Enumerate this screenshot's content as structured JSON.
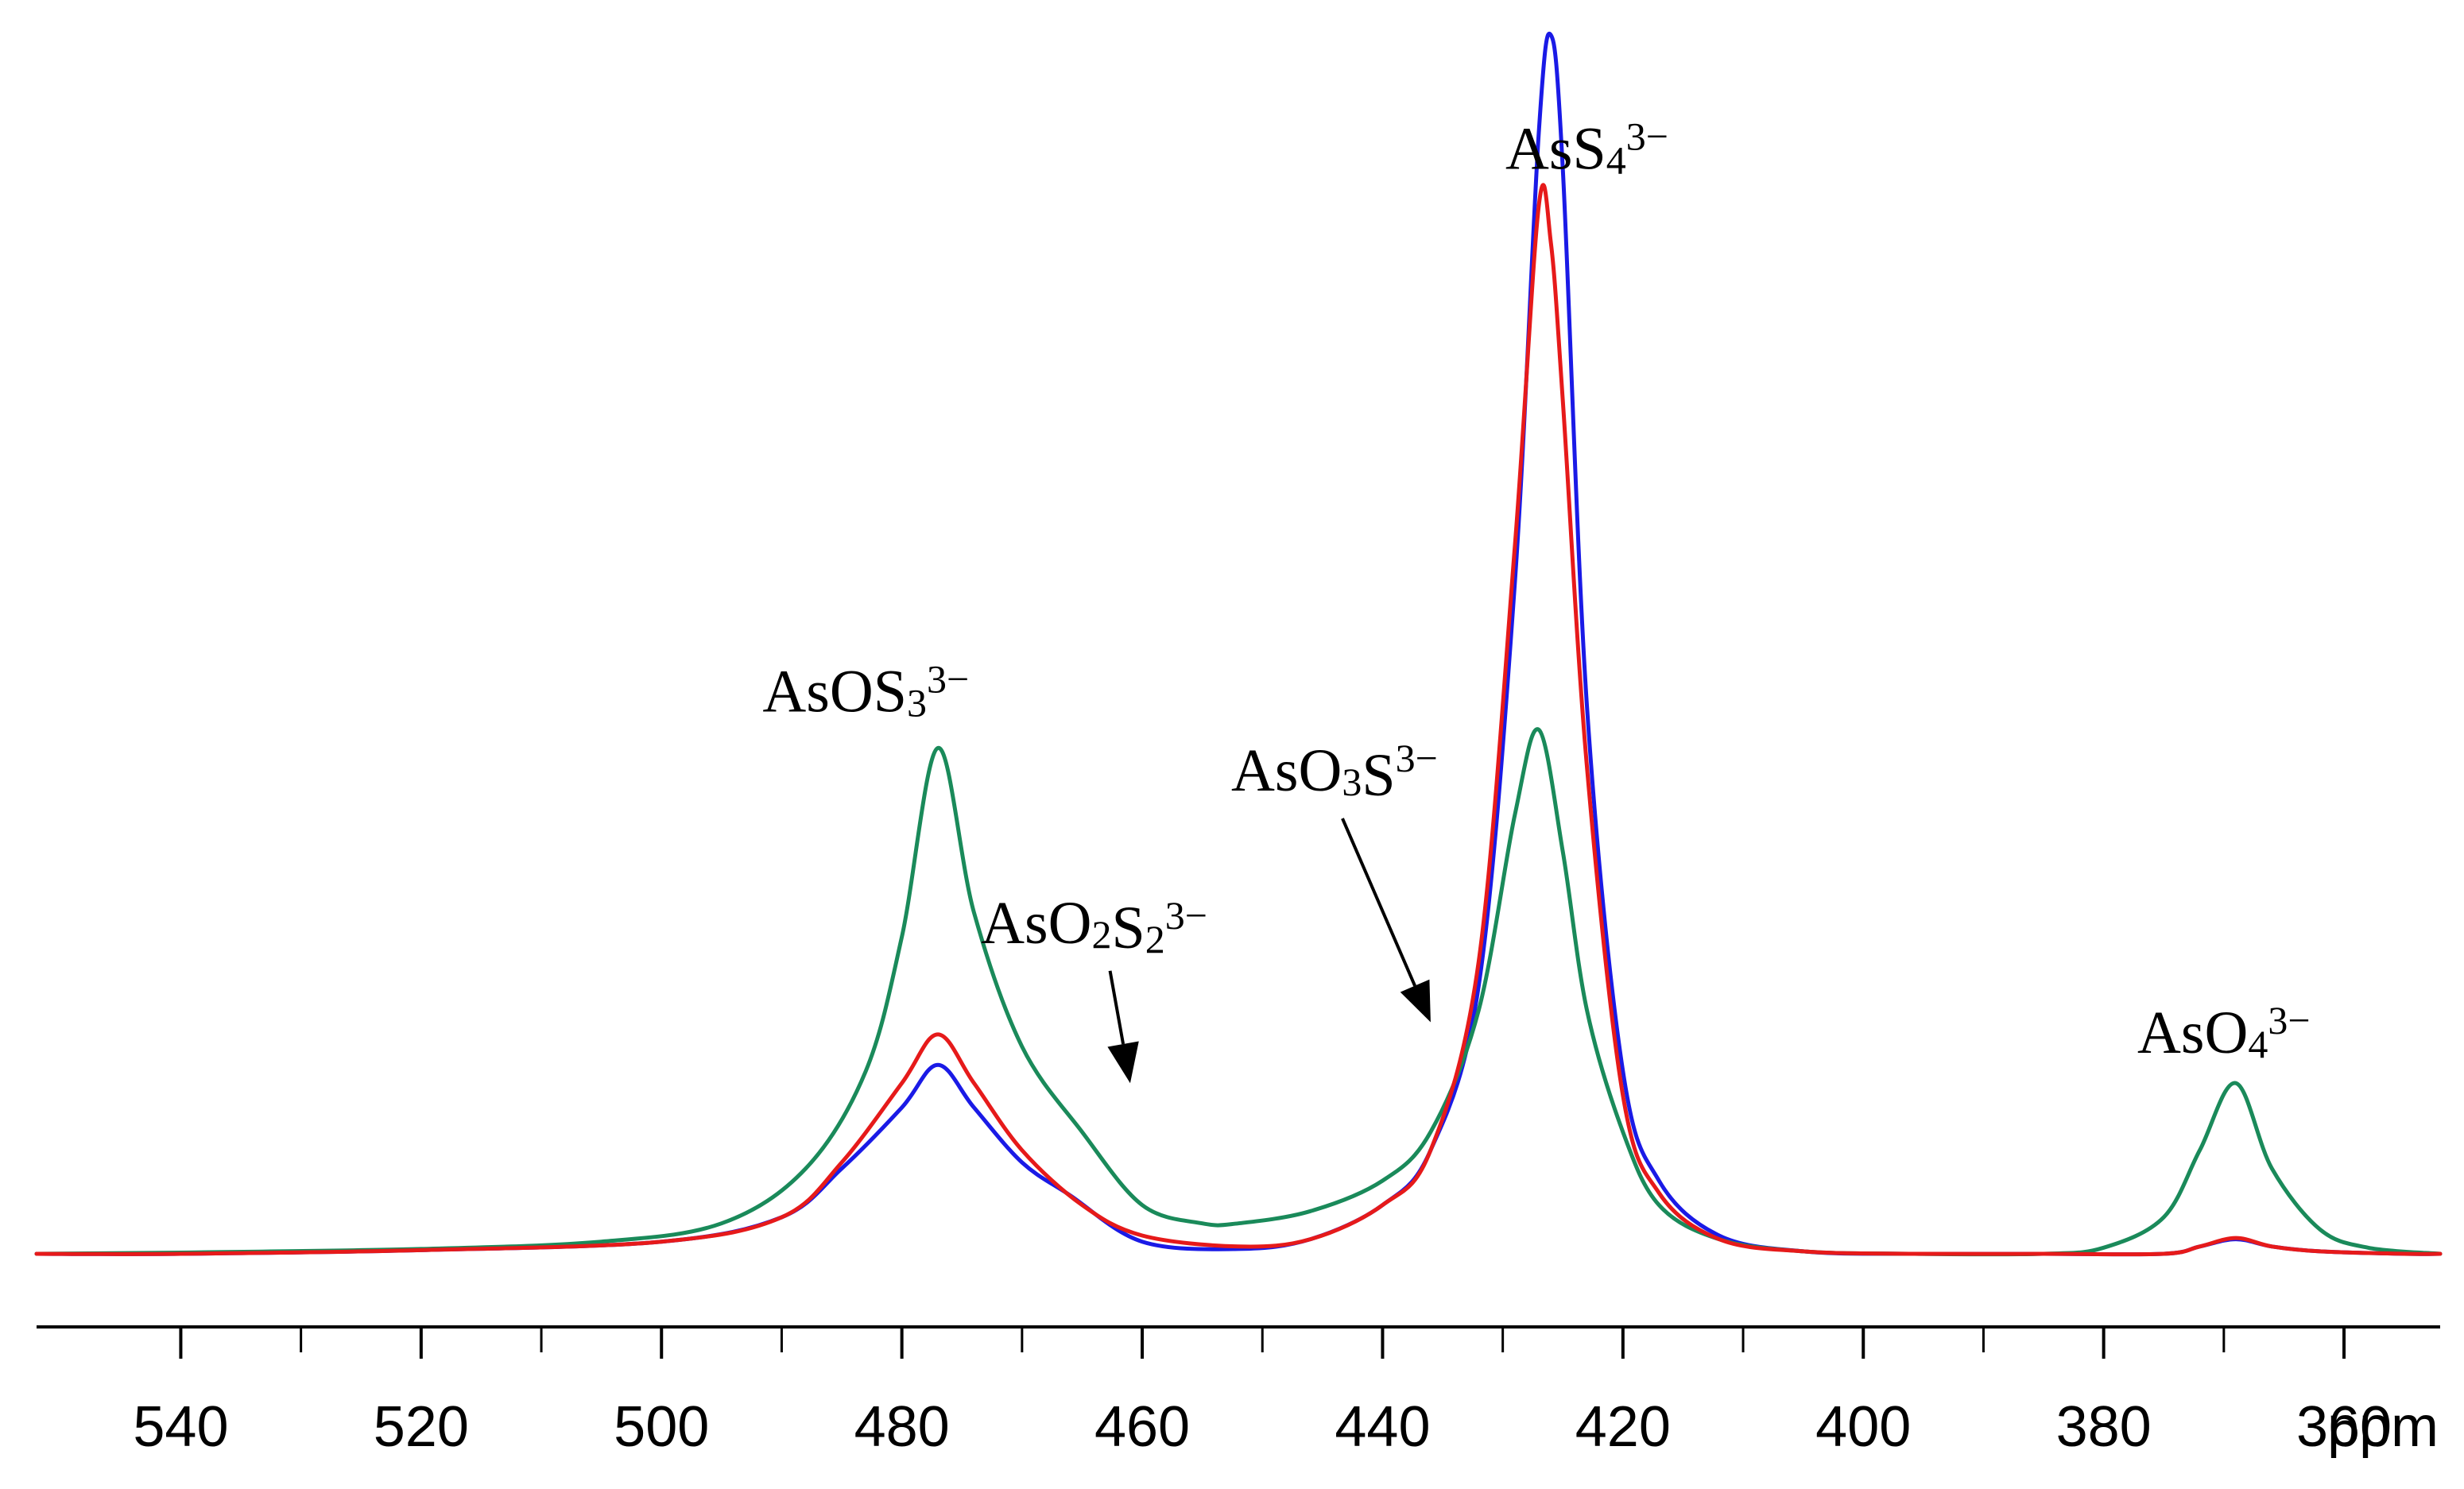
{
  "chart_data": {
    "type": "line",
    "title": "",
    "xlabel": "ppm",
    "ylabel": "",
    "xlim": [
      552,
      352
    ],
    "x_reversed": true,
    "ylim": [
      0,
      1
    ],
    "grid": false,
    "legend": "none",
    "x_ticks": [
      540,
      520,
      500,
      480,
      460,
      440,
      420,
      400,
      380,
      360
    ],
    "x_tick_labels": [
      "540",
      "520",
      "500",
      "480",
      "460",
      "440",
      "420",
      "400",
      "380",
      "360"
    ],
    "minor_tick_step": 10,
    "series": [
      {
        "name": "blue",
        "color": "#1a1ae6",
        "x": [
          552,
          540,
          520,
          500,
          490,
          485,
          480,
          477,
          474,
          470,
          466,
          460,
          452,
          446,
          440,
          436,
          432,
          429,
          427,
          426,
          425,
          423,
          420,
          417,
          412,
          405,
          396,
          385,
          375,
          372,
          369,
          366,
          362,
          355,
          352
        ],
        "values": [
          0.0,
          0.0,
          0.003,
          0.01,
          0.03,
          0.07,
          0.12,
          0.155,
          0.12,
          0.075,
          0.048,
          0.01,
          0.004,
          0.012,
          0.04,
          0.085,
          0.22,
          0.55,
          0.92,
          1.0,
          0.89,
          0.45,
          0.15,
          0.06,
          0.015,
          0.002,
          0.0,
          0.0,
          0.0,
          0.006,
          0.012,
          0.006,
          0.002,
          0.0,
          0.0
        ]
      },
      {
        "name": "red",
        "color": "#e61a1a",
        "x": [
          552,
          540,
          520,
          500,
          490,
          485,
          480,
          477,
          474,
          470,
          465,
          460,
          452,
          446,
          440,
          436,
          432,
          429,
          427,
          426,
          425,
          423,
          420,
          417,
          412,
          405,
          396,
          385,
          375,
          372,
          369,
          366,
          362,
          355,
          352
        ],
        "values": [
          0.0,
          0.0,
          0.003,
          0.01,
          0.03,
          0.075,
          0.14,
          0.18,
          0.14,
          0.085,
          0.04,
          0.015,
          0.006,
          0.012,
          0.04,
          0.085,
          0.24,
          0.58,
          0.86,
          0.83,
          0.7,
          0.4,
          0.13,
          0.05,
          0.012,
          0.002,
          0.0,
          0.0,
          0.0,
          0.006,
          0.013,
          0.006,
          0.002,
          0.0,
          0.0
        ]
      },
      {
        "name": "green",
        "color": "#1a8a5a",
        "x": [
          552,
          540,
          520,
          505,
          495,
          488,
          483,
          480,
          477,
          474,
          470,
          465,
          460,
          455,
          452,
          446,
          440,
          436,
          432,
          429,
          427,
          425,
          423,
          420,
          417,
          412,
          405,
          396,
          385,
          380,
          375,
          372,
          369,
          366,
          362,
          358,
          352
        ],
        "values": [
          0.0,
          0.001,
          0.004,
          0.01,
          0.025,
          0.07,
          0.15,
          0.26,
          0.415,
          0.28,
          0.17,
          0.1,
          0.04,
          0.025,
          0.025,
          0.035,
          0.06,
          0.1,
          0.2,
          0.36,
          0.43,
          0.33,
          0.2,
          0.1,
          0.04,
          0.012,
          0.002,
          0.0,
          0.0,
          0.005,
          0.03,
          0.085,
          0.14,
          0.07,
          0.02,
          0.005,
          0.0
        ]
      }
    ],
    "annotations": [
      {
        "id": "AsS4",
        "base": "AsS",
        "parts": [
          {
            "t": "AsS",
            "k": "n"
          },
          {
            "t": "4",
            "k": "sub"
          },
          {
            "t": "3−",
            "k": "sup"
          }
        ],
        "x": 423,
        "y": 0.89,
        "arrow": false
      },
      {
        "id": "AsOS3",
        "parts": [
          {
            "t": "AsOS",
            "k": "n"
          },
          {
            "t": "3",
            "k": "sub"
          },
          {
            "t": "3−",
            "k": "sup"
          }
        ],
        "x": 483,
        "y": 0.445,
        "arrow": false
      },
      {
        "id": "AsO3S",
        "parts": [
          {
            "t": "AsO",
            "k": "n"
          },
          {
            "t": "3",
            "k": "sub"
          },
          {
            "t": "S",
            "k": "n"
          },
          {
            "t": "3−",
            "k": "sup"
          }
        ],
        "x": 444,
        "y": 0.38,
        "arrow": true,
        "arrow_to_x": 436,
        "arrow_to_y": 0.19
      },
      {
        "id": "AsO2S2",
        "parts": [
          {
            "t": "AsO",
            "k": "n"
          },
          {
            "t": "2",
            "k": "sub"
          },
          {
            "t": "S",
            "k": "n"
          },
          {
            "t": "2",
            "k": "sub"
          },
          {
            "t": "3−",
            "k": "sup"
          }
        ],
        "x": 464,
        "y": 0.255,
        "arrow": true,
        "arrow_to_x": 461,
        "arrow_to_y": 0.14
      },
      {
        "id": "AsO4",
        "parts": [
          {
            "t": "AsO",
            "k": "n"
          },
          {
            "t": "4",
            "k": "sub"
          },
          {
            "t": "3−",
            "k": "sup"
          }
        ],
        "x": 370,
        "y": 0.165,
        "arrow": false
      }
    ]
  }
}
